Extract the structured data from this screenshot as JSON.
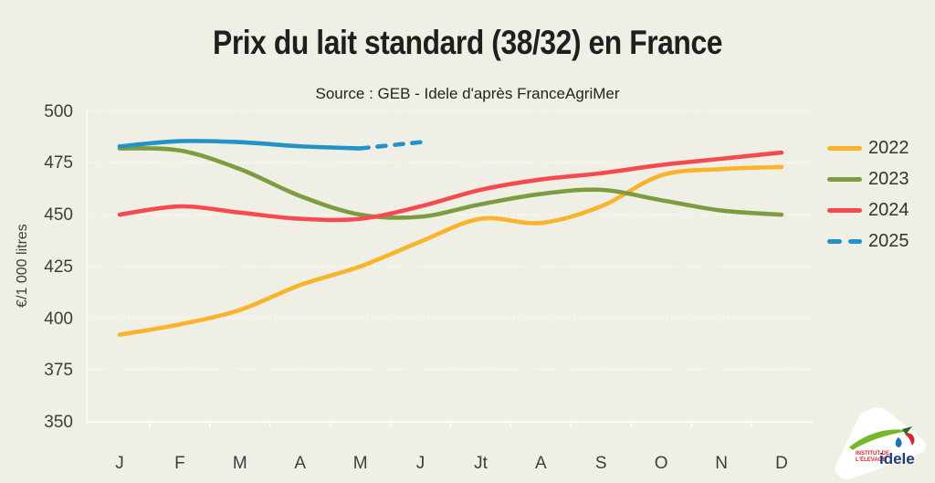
{
  "title": "Prix du lait standard (38/32) en France",
  "subtitle": "Source : GEB - Idele d'après FranceAgriMer",
  "chart_data": {
    "type": "line",
    "title": "Prix du lait standard (38/32) en France",
    "subtitle": "Source : GEB - Idele d'après FranceAgriMer",
    "xlabel": "",
    "ylabel": "€/1 000 litres",
    "x_labels": [
      "J",
      "F",
      "M",
      "A",
      "M",
      "J",
      "Jt",
      "A",
      "S",
      "O",
      "N",
      "D"
    ],
    "yticks": [
      350,
      375,
      400,
      425,
      450,
      475,
      500
    ],
    "ylim": [
      350,
      500
    ],
    "grid": "horizontal-dotted-white",
    "legend_position": "right",
    "series": [
      {
        "name": "2022",
        "color": "#FBB32C",
        "style": "solid",
        "values": [
          392,
          397,
          404,
          416,
          425,
          437,
          448,
          446,
          454,
          469,
          472,
          473
        ]
      },
      {
        "name": "2023",
        "color": "#7D9C40",
        "style": "solid",
        "values": [
          482,
          481,
          472,
          459,
          450,
          449,
          455,
          460,
          462,
          457,
          452,
          450
        ]
      },
      {
        "name": "2024",
        "color": "#F64A50",
        "style": "solid",
        "values": [
          450,
          454,
          451,
          448,
          448,
          454,
          462,
          467,
          470,
          474,
          477,
          480
        ]
      },
      {
        "name": "2025",
        "color": "#2193C8",
        "style": "dashed-after-solid",
        "solid_through_index": 4,
        "values": [
          483,
          485.5,
          485,
          483,
          482,
          485
        ]
      }
    ]
  },
  "logo": {
    "line1": "INSTITUT DE",
    "line2": "L'ÉLEVAGE",
    "name": "idele",
    "accent_green": "#76B82A",
    "accent_red": "#D9242B",
    "accent_blue": "#1C75BC",
    "name_color": "#203B7D"
  }
}
